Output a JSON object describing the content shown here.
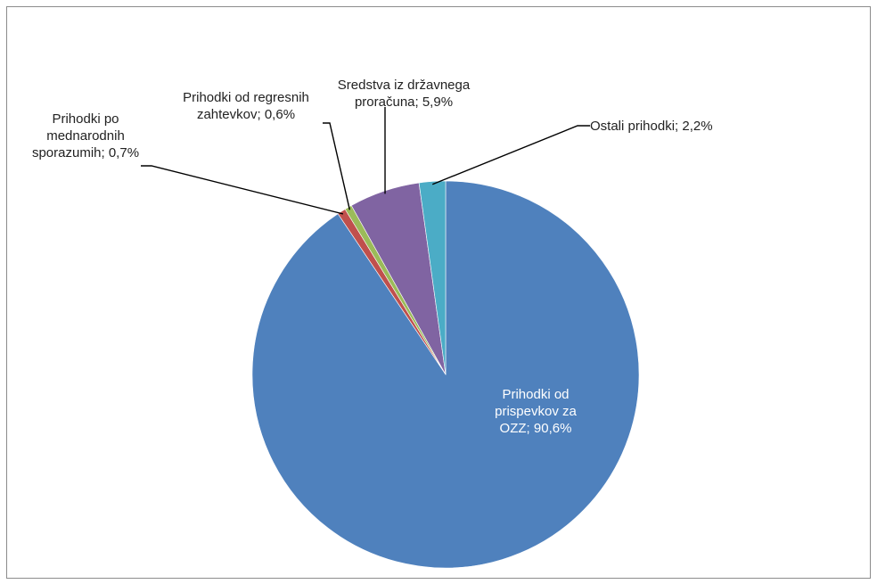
{
  "chart_data": {
    "type": "pie",
    "start_angle_deg": 0,
    "direction": "clockwise",
    "slices": [
      {
        "label": "Prihodki od prispevkov za OZZ",
        "value": 90.6,
        "display": "90,6%",
        "color": "#4f81bd"
      },
      {
        "label": "Prihodki po mednarodnih sporazumih",
        "value": 0.7,
        "display": "0,7%",
        "color": "#c0504d"
      },
      {
        "label": "Prihodki od regresnih zahtevkov",
        "value": 0.6,
        "display": "0,6%",
        "color": "#9bbb59"
      },
      {
        "label": "Sredstva iz državnega proračuna",
        "value": 5.9,
        "display": "5,9%",
        "color": "#8064a2"
      },
      {
        "label": "Ostali prihodki",
        "value": 2.2,
        "display": "2,2%",
        "color": "#4bacc6"
      }
    ]
  }
}
